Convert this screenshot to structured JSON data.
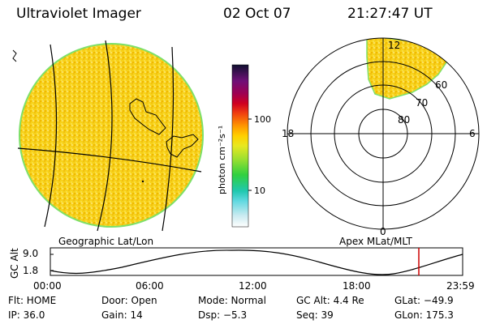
{
  "header": {
    "title": "Ultraviolet Imager",
    "date": "02 Oct 07",
    "time": "21:27:47 UT"
  },
  "colorbar": {
    "label": "photon cm⁻²s⁻¹",
    "ticks": [
      "100",
      "10"
    ],
    "scale": "log"
  },
  "left_panel": {
    "caption": "Geographic Lat/Lon",
    "fill_color": "#f5c800"
  },
  "right_panel": {
    "caption": "Apex MLat/MLT",
    "mlt_labels": {
      "top": "12",
      "left": "18",
      "right": "6",
      "bottom": "0"
    },
    "lat_labels": [
      "60",
      "70",
      "80"
    ]
  },
  "timeline": {
    "y_axis_label": "GC Alt",
    "y_ticks": [
      "9.0",
      "1.8"
    ],
    "x_ticks": [
      "00:00",
      "06:00",
      "12:00",
      "18:00",
      "23:59"
    ],
    "marker_color": "#cc0000"
  },
  "status": {
    "row1": [
      {
        "name": "flt",
        "text": "Flt: HOME"
      },
      {
        "name": "door",
        "text": "Door: Open"
      },
      {
        "name": "mode",
        "text": "Mode: Normal"
      },
      {
        "name": "gcalt",
        "text": "GC Alt: 4.4 Re"
      },
      {
        "name": "glat",
        "text": "GLat: −49.9"
      }
    ],
    "row2": [
      {
        "name": "ip",
        "text": "IP: 36.0"
      },
      {
        "name": "gain",
        "text": "Gain: 14"
      },
      {
        "name": "dsp",
        "text": "Dsp:    −5.3"
      },
      {
        "name": "seq",
        "text": "Seq: 39"
      },
      {
        "name": "glon",
        "text": "GLon: 175.3"
      }
    ]
  }
}
